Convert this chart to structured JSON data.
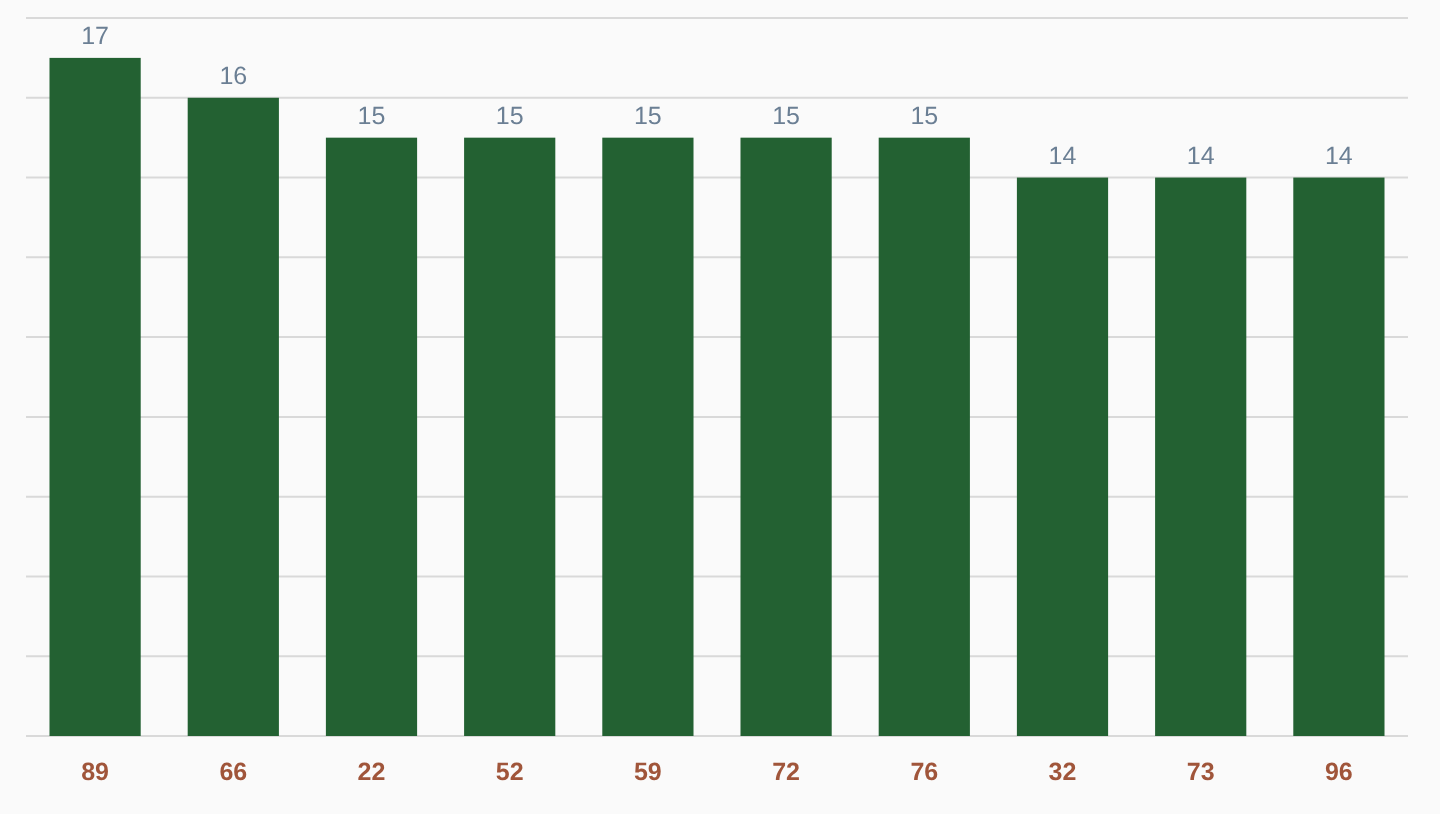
{
  "chart_data": {
    "type": "bar",
    "categories": [
      "89",
      "66",
      "22",
      "52",
      "59",
      "72",
      "76",
      "32",
      "73",
      "96"
    ],
    "values": [
      17,
      16,
      15,
      15,
      15,
      15,
      15,
      14,
      14,
      14
    ],
    "color": "#236132",
    "ylim": [
      0,
      18
    ],
    "yticks": [
      {
        "value": 0,
        "label": null
      },
      {
        "value": 2,
        "label": null
      },
      {
        "value": 4,
        "label": null
      },
      {
        "value": 6,
        "label": null
      },
      {
        "value": 8,
        "label": null
      },
      {
        "value": 10,
        "label": null
      },
      {
        "value": 12,
        "label": null
      },
      {
        "value": 14,
        "label": null
      },
      {
        "value": 16,
        "label": null
      },
      {
        "value": 18,
        "label": null
      }
    ],
    "grid": "y",
    "tick_labels": "x",
    "data_labels": true
  }
}
